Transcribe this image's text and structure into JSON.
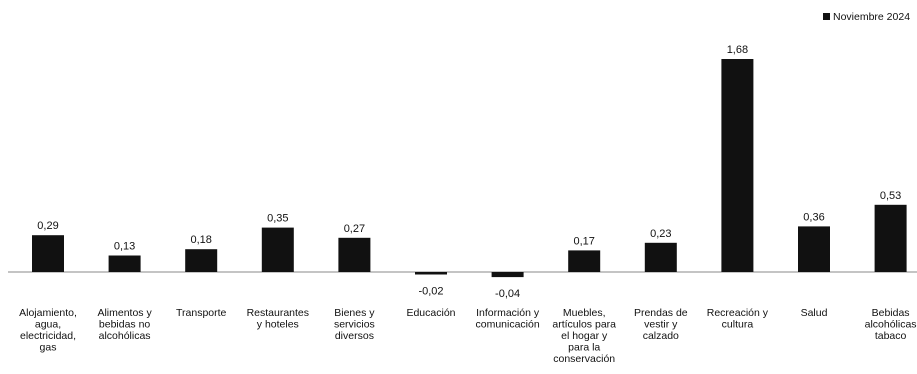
{
  "chart_data": {
    "type": "bar",
    "categories": [
      [
        "Alojamiento,",
        "agua,",
        "electricidad,",
        "gas"
      ],
      [
        "Alimentos y",
        "bebidas no",
        "alcohólicas"
      ],
      [
        "Transporte"
      ],
      [
        "Restaurantes",
        "y hoteles"
      ],
      [
        "Bienes y",
        "servicios",
        "diversos"
      ],
      [
        "Educación"
      ],
      [
        "Información y",
        "comunicación"
      ],
      [
        "Muebles,",
        "artículos para",
        "el hogar y",
        "para la",
        "conservación"
      ],
      [
        "Prendas de",
        "vestir y",
        "calzado"
      ],
      [
        "Recreación y",
        "cultura"
      ],
      [
        "Salud"
      ],
      [
        "Bebidas",
        "alcohólicas",
        "tabaco"
      ]
    ],
    "series": [
      {
        "name": "Noviembre 2024",
        "values": [
          0.29,
          0.13,
          0.18,
          0.35,
          0.27,
          -0.02,
          -0.04,
          0.17,
          0.23,
          1.68,
          0.36,
          0.53
        ],
        "labels": [
          "0,29",
          "0,13",
          "0,18",
          "0,35",
          "0,27",
          "-0,02",
          "-0,04",
          "0,17",
          "0,23",
          "1,68",
          "0,36",
          "0,53"
        ]
      }
    ],
    "colors": {
      "bar": "#111111",
      "axis": "#888888"
    },
    "legend_position": "top-right",
    "grid": false,
    "ylim": [
      -0.1,
      1.75
    ]
  }
}
